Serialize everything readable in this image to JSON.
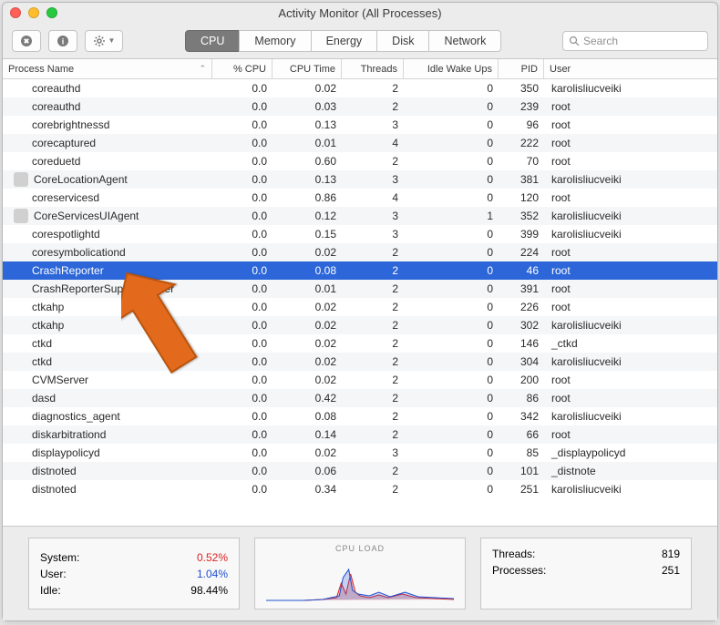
{
  "window": {
    "title": "Activity Monitor (All Processes)"
  },
  "toolbar": {
    "tabs": [
      "CPU",
      "Memory",
      "Energy",
      "Disk",
      "Network"
    ],
    "active_tab": 0,
    "search_placeholder": "Search"
  },
  "columns": [
    "Process Name",
    "% CPU",
    "CPU Time",
    "Threads",
    "Idle Wake Ups",
    "PID",
    "User"
  ],
  "processes": [
    {
      "name": "coreauthd",
      "cpu": "0.0",
      "time": "0.02",
      "threads": "2",
      "wake": "0",
      "pid": "350",
      "user": "karolisliucveiki",
      "icon": false
    },
    {
      "name": "coreauthd",
      "cpu": "0.0",
      "time": "0.03",
      "threads": "2",
      "wake": "0",
      "pid": "239",
      "user": "root",
      "icon": false
    },
    {
      "name": "corebrightnessd",
      "cpu": "0.0",
      "time": "0.13",
      "threads": "3",
      "wake": "0",
      "pid": "96",
      "user": "root",
      "icon": false
    },
    {
      "name": "corecaptured",
      "cpu": "0.0",
      "time": "0.01",
      "threads": "4",
      "wake": "0",
      "pid": "222",
      "user": "root",
      "icon": false
    },
    {
      "name": "coreduetd",
      "cpu": "0.0",
      "time": "0.60",
      "threads": "2",
      "wake": "0",
      "pid": "70",
      "user": "root",
      "icon": false
    },
    {
      "name": "CoreLocationAgent",
      "cpu": "0.0",
      "time": "0.13",
      "threads": "3",
      "wake": "0",
      "pid": "381",
      "user": "karolisliucveiki",
      "icon": true
    },
    {
      "name": "coreservicesd",
      "cpu": "0.0",
      "time": "0.86",
      "threads": "4",
      "wake": "0",
      "pid": "120",
      "user": "root",
      "icon": false
    },
    {
      "name": "CoreServicesUIAgent",
      "cpu": "0.0",
      "time": "0.12",
      "threads": "3",
      "wake": "1",
      "pid": "352",
      "user": "karolisliucveiki",
      "icon": true
    },
    {
      "name": "corespotlightd",
      "cpu": "0.0",
      "time": "0.15",
      "threads": "3",
      "wake": "0",
      "pid": "399",
      "user": "karolisliucveiki",
      "icon": false
    },
    {
      "name": "coresymbolicationd",
      "cpu": "0.0",
      "time": "0.02",
      "threads": "2",
      "wake": "0",
      "pid": "224",
      "user": "root",
      "icon": false
    },
    {
      "name": "CrashReporter",
      "cpu": "0.0",
      "time": "0.08",
      "threads": "2",
      "wake": "0",
      "pid": "46",
      "user": "root",
      "icon": false,
      "selected": true
    },
    {
      "name": "CrashReporterSupportHelper",
      "cpu": "0.0",
      "time": "0.01",
      "threads": "2",
      "wake": "0",
      "pid": "391",
      "user": "root",
      "icon": false
    },
    {
      "name": "ctkahp",
      "cpu": "0.0",
      "time": "0.02",
      "threads": "2",
      "wake": "0",
      "pid": "226",
      "user": "root",
      "icon": false
    },
    {
      "name": "ctkahp",
      "cpu": "0.0",
      "time": "0.02",
      "threads": "2",
      "wake": "0",
      "pid": "302",
      "user": "karolisliucveiki",
      "icon": false
    },
    {
      "name": "ctkd",
      "cpu": "0.0",
      "time": "0.02",
      "threads": "2",
      "wake": "0",
      "pid": "146",
      "user": "_ctkd",
      "icon": false
    },
    {
      "name": "ctkd",
      "cpu": "0.0",
      "time": "0.02",
      "threads": "2",
      "wake": "0",
      "pid": "304",
      "user": "karolisliucveiki",
      "icon": false
    },
    {
      "name": "CVMServer",
      "cpu": "0.0",
      "time": "0.02",
      "threads": "2",
      "wake": "0",
      "pid": "200",
      "user": "root",
      "icon": false
    },
    {
      "name": "dasd",
      "cpu": "0.0",
      "time": "0.42",
      "threads": "2",
      "wake": "0",
      "pid": "86",
      "user": "root",
      "icon": false
    },
    {
      "name": "diagnostics_agent",
      "cpu": "0.0",
      "time": "0.08",
      "threads": "2",
      "wake": "0",
      "pid": "342",
      "user": "karolisliucveiki",
      "icon": false
    },
    {
      "name": "diskarbitrationd",
      "cpu": "0.0",
      "time": "0.14",
      "threads": "2",
      "wake": "0",
      "pid": "66",
      "user": "root",
      "icon": false
    },
    {
      "name": "displaypolicyd",
      "cpu": "0.0",
      "time": "0.02",
      "threads": "3",
      "wake": "0",
      "pid": "85",
      "user": "_displaypolicyd",
      "icon": false
    },
    {
      "name": "distnoted",
      "cpu": "0.0",
      "time": "0.06",
      "threads": "2",
      "wake": "0",
      "pid": "101",
      "user": "_distnote",
      "icon": false
    },
    {
      "name": "distnoted",
      "cpu": "0.0",
      "time": "0.34",
      "threads": "2",
      "wake": "0",
      "pid": "251",
      "user": "karolisliucveiki",
      "icon": false
    }
  ],
  "footer": {
    "left": [
      {
        "label": "System:",
        "value": "0.52%",
        "cls": "v-red"
      },
      {
        "label": "User:",
        "value": "1.04%",
        "cls": "v-blue"
      },
      {
        "label": "Idle:",
        "value": "98.44%",
        "cls": ""
      }
    ],
    "graph_title": "CPU LOAD",
    "right": [
      {
        "label": "Threads:",
        "value": "819"
      },
      {
        "label": "Processes:",
        "value": "251"
      }
    ]
  },
  "colors": {
    "selected_bg": "#2c66d8",
    "stripe_bg": "#f4f6f8",
    "arrow": "#e36a1c"
  }
}
